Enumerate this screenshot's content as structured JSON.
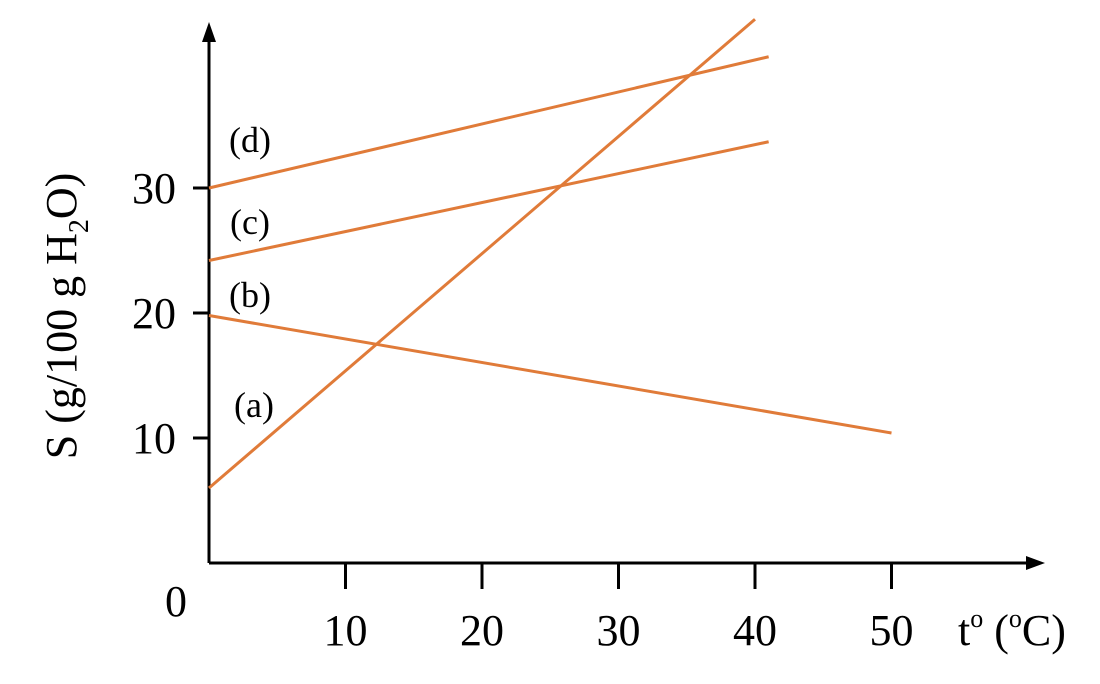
{
  "chart_data": {
    "type": "line",
    "title": "",
    "xlabel": {
      "text": "t",
      "sup": "o",
      "paren_open": " (",
      "unit_sup": "o",
      "unit": "C)"
    },
    "ylabel": {
      "prefix": "S (g/100 g H",
      "sub": "2",
      "suffix": "O)"
    },
    "origin_label": "0",
    "x_ticks": [
      "10",
      "20",
      "30",
      "40",
      "50"
    ],
    "x_tick_values": [
      10,
      20,
      30,
      40,
      50
    ],
    "y_ticks": [
      "10",
      "20",
      "30"
    ],
    "y_tick_values": [
      10,
      20,
      30
    ],
    "xlim": [
      0,
      60
    ],
    "ylim": [
      0,
      42
    ],
    "grid": false,
    "line_color": "#E07B39",
    "series": [
      {
        "name": "(a)",
        "x": [
          0,
          40
        ],
        "y": [
          6,
          43.5
        ]
      },
      {
        "name": "(b)",
        "x": [
          0,
          50
        ],
        "y": [
          19.8,
          10.4
        ]
      },
      {
        "name": "(c)",
        "x": [
          0,
          41
        ],
        "y": [
          24.2,
          33.7
        ]
      },
      {
        "name": "(d)",
        "x": [
          0,
          41
        ],
        "y": [
          30,
          40.5
        ]
      }
    ]
  }
}
